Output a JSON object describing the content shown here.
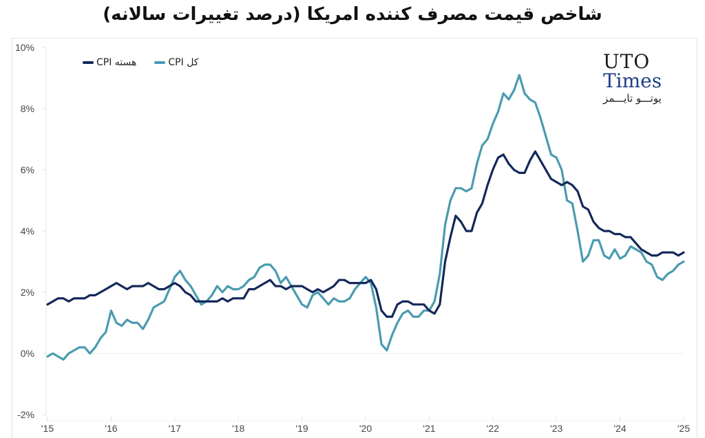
{
  "title": "شاخص قیمت مصرف کننده امریکا (درصد تغییرات سالانه)",
  "legend": [
    {
      "label": "CPI هسته",
      "color": "#14285a"
    },
    {
      "label": "CPI کل",
      "color": "#4a9bb0"
    }
  ],
  "logo": {
    "line1": "UTO",
    "line2": "Times",
    "line3": "یوتـــو تایـــمز"
  },
  "chart_data": {
    "type": "line",
    "title": "شاخص قیمت مصرف کننده امریکا (درصد تغییرات سالانه)",
    "xlabel": "",
    "ylabel": "",
    "ylim": [
      -2,
      10
    ],
    "yticks": [
      "10%",
      "8%",
      "6%",
      "4%",
      "2%",
      "0%",
      "-2%"
    ],
    "ytick_values": [
      10,
      8,
      6,
      4,
      2,
      0,
      -2
    ],
    "xticks": [
      "'15",
      "'16",
      "'17",
      "'18",
      "'19",
      "'20",
      "'21",
      "'22",
      "'23",
      "'24",
      "'25"
    ],
    "x_start": "2015-01",
    "x_frequency": "monthly",
    "grid": false,
    "legend_position": "top-left",
    "series": [
      {
        "name": "CPI هسته",
        "color": "#14285a",
        "values": [
          1.6,
          1.7,
          1.8,
          1.8,
          1.7,
          1.8,
          1.8,
          1.8,
          1.9,
          1.9,
          2.0,
          2.1,
          2.2,
          2.3,
          2.2,
          2.1,
          2.2,
          2.2,
          2.2,
          2.3,
          2.2,
          2.1,
          2.1,
          2.2,
          2.3,
          2.2,
          2.0,
          1.9,
          1.7,
          1.7,
          1.7,
          1.7,
          1.7,
          1.8,
          1.7,
          1.8,
          1.8,
          1.8,
          2.1,
          2.1,
          2.2,
          2.3,
          2.4,
          2.2,
          2.2,
          2.1,
          2.2,
          2.2,
          2.2,
          2.1,
          2.0,
          2.1,
          2.0,
          2.1,
          2.2,
          2.4,
          2.4,
          2.3,
          2.3,
          2.3,
          2.3,
          2.4,
          2.1,
          1.4,
          1.2,
          1.2,
          1.6,
          1.7,
          1.7,
          1.6,
          1.6,
          1.6,
          1.4,
          1.3,
          1.6,
          3.0,
          3.8,
          4.5,
          4.3,
          4.0,
          4.0,
          4.6,
          4.9,
          5.5,
          6.0,
          6.4,
          6.5,
          6.2,
          6.0,
          5.9,
          5.9,
          6.3,
          6.6,
          6.3,
          6.0,
          5.7,
          5.6,
          5.5,
          5.6,
          5.5,
          5.3,
          4.8,
          4.7,
          4.3,
          4.1,
          4.0,
          4.0,
          3.9,
          3.9,
          3.8,
          3.8,
          3.6,
          3.4,
          3.3,
          3.2,
          3.2,
          3.3,
          3.3,
          3.3,
          3.2,
          3.3
        ],
        "estimated": true
      },
      {
        "name": "CPI کل",
        "color": "#4a9bb0",
        "values": [
          -0.1,
          0.0,
          -0.1,
          -0.2,
          0.0,
          0.1,
          0.2,
          0.2,
          0.0,
          0.2,
          0.5,
          0.7,
          1.4,
          1.0,
          0.9,
          1.1,
          1.0,
          1.0,
          0.8,
          1.1,
          1.5,
          1.6,
          1.7,
          2.1,
          2.5,
          2.7,
          2.4,
          2.2,
          1.9,
          1.6,
          1.7,
          1.9,
          2.2,
          2.0,
          2.2,
          2.1,
          2.1,
          2.2,
          2.4,
          2.5,
          2.8,
          2.9,
          2.9,
          2.7,
          2.3,
          2.5,
          2.2,
          1.9,
          1.6,
          1.5,
          1.9,
          2.0,
          1.8,
          1.6,
          1.8,
          1.7,
          1.7,
          1.8,
          2.1,
          2.3,
          2.5,
          2.3,
          1.5,
          0.3,
          0.1,
          0.6,
          1.0,
          1.3,
          1.4,
          1.2,
          1.2,
          1.4,
          1.4,
          1.7,
          2.6,
          4.2,
          5.0,
          5.4,
          5.4,
          5.3,
          5.4,
          6.2,
          6.8,
          7.0,
          7.5,
          7.9,
          8.5,
          8.3,
          8.6,
          9.1,
          8.5,
          8.3,
          8.2,
          7.7,
          7.1,
          6.5,
          6.4,
          6.0,
          5.0,
          4.9,
          4.0,
          3.0,
          3.2,
          3.7,
          3.7,
          3.2,
          3.1,
          3.4,
          3.1,
          3.2,
          3.5,
          3.4,
          3.3,
          3.0,
          2.9,
          2.5,
          2.4,
          2.6,
          2.7,
          2.9,
          3.0
        ],
        "estimated": true
      }
    ]
  }
}
